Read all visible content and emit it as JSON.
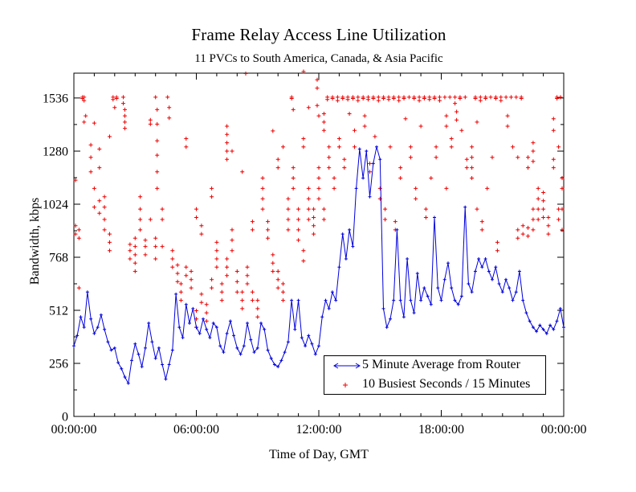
{
  "page": {
    "title": "Frame Relay Access Line Utilization",
    "subtitle": "11 PVCs to South America, Canada, & Asia Pacific"
  },
  "legend": {
    "entries": [
      {
        "label": "5 Minute Average from Router",
        "marker": "blue-errorbar-line"
      },
      {
        "label": "10 Busiest Seconds / 15 Minutes",
        "marker": "red-plus"
      }
    ]
  },
  "colors": {
    "line_series": "#0000dd",
    "scatter_series": "#ee0000",
    "axis": "#000000",
    "background": "#ffffff"
  },
  "chart_data": {
    "type": "line",
    "title": "Frame Relay Access Line Utilization",
    "subtitle": "11 PVCs to South America, Canada, & Asia Pacific",
    "xlabel": "Time of Day, GMT",
    "ylabel": "Bandwidth, kbps",
    "xlim_hours": [
      0,
      24
    ],
    "ylim": [
      0,
      1656
    ],
    "grid": false,
    "legend_position": "inside-lower-right",
    "x_ticks": [
      {
        "t": 0,
        "label": "00:00:00"
      },
      {
        "t": 6,
        "label": "06:00:00"
      },
      {
        "t": 12,
        "label": "12:00:00"
      },
      {
        "t": 18,
        "label": "18:00:00"
      },
      {
        "t": 24,
        "label": "00:00:00"
      }
    ],
    "x_minor_step_hours": 1,
    "y_ticks": [
      {
        "v": 0,
        "label": "0"
      },
      {
        "v": 256,
        "label": "256"
      },
      {
        "v": 512,
        "label": "512"
      },
      {
        "v": 768,
        "label": "768"
      },
      {
        "v": 1024,
        "label": "1024"
      },
      {
        "v": 1280,
        "label": "1280"
      },
      {
        "v": 1536,
        "label": "1536"
      }
    ],
    "y_minor_step": 128,
    "series": [
      {
        "name": "5 Minute Average from Router",
        "type": "line",
        "color": "#0000dd",
        "marker": "plus",
        "start_hour": 0,
        "sample_interval_minutes": 10,
        "values": [
          340,
          390,
          480,
          430,
          600,
          470,
          400,
          430,
          490,
          420,
          360,
          320,
          330,
          260,
          230,
          190,
          160,
          270,
          350,
          300,
          240,
          330,
          450,
          360,
          280,
          330,
          250,
          180,
          250,
          320,
          590,
          430,
          380,
          540,
          450,
          520,
          430,
          400,
          470,
          420,
          380,
          450,
          430,
          340,
          310,
          400,
          460,
          390,
          330,
          300,
          340,
          450,
          370,
          310,
          330,
          450,
          420,
          320,
          280,
          250,
          240,
          270,
          310,
          360,
          560,
          420,
          560,
          380,
          340,
          390,
          350,
          300,
          340,
          480,
          560,
          520,
          600,
          560,
          720,
          880,
          760,
          900,
          820,
          1100,
          1290,
          1150,
          1280,
          1060,
          1220,
          1300,
          1240,
          520,
          430,
          470,
          560,
          900,
          560,
          480,
          760,
          560,
          500,
          690,
          560,
          620,
          580,
          540,
          960,
          620,
          560,
          660,
          740,
          620,
          560,
          540,
          580,
          1010,
          640,
          600,
          700,
          760,
          720,
          760,
          700,
          660,
          720,
          640,
          600,
          660,
          620,
          560,
          600,
          700,
          560,
          500,
          460,
          430,
          410,
          440,
          420,
          400,
          440,
          420,
          460,
          520,
          430
        ]
      },
      {
        "name": "10 Busiest Seconds / 15 Minutes",
        "type": "scatter",
        "color": "#ee0000",
        "marker": "plus",
        "columns": [
          [
            0.08,
            [
              880,
              920,
              1140
            ]
          ],
          [
            0.25,
            [
              620,
              860,
              900
            ]
          ],
          [
            0.5,
            [
              1420,
              1536,
              1530
            ]
          ],
          [
            0.58,
            [
              1536,
              1536,
              1520,
              1450
            ]
          ],
          [
            0.83,
            [
              1180,
              1250,
              1310
            ]
          ],
          [
            1.0,
            [
              1010,
              1100,
              1415
            ]
          ],
          [
            1.25,
            [
              980,
              1040,
              1200,
              1290
            ]
          ],
          [
            1.5,
            [
              900,
              950,
              1010,
              1060
            ]
          ],
          [
            1.75,
            [
              800,
              840,
              880,
              1350
            ]
          ],
          [
            2.0,
            [
              1536,
              1536,
              1525,
              1490
            ]
          ],
          [
            2.17,
            [
              1536,
              1530
            ]
          ],
          [
            2.5,
            [
              1390,
              1420,
              1450,
              1480,
              1510,
              1536
            ]
          ],
          [
            2.75,
            [
              760,
              800,
              830
            ]
          ],
          [
            3.0,
            [
              700,
              740,
              780,
              820,
              860
            ]
          ],
          [
            3.25,
            [
              900,
              950,
              1000,
              1060
            ]
          ],
          [
            3.5,
            [
              780,
              820,
              850
            ]
          ],
          [
            3.75,
            [
              950,
              1410,
              1430
            ]
          ],
          [
            4.0,
            [
              760,
              820,
              860
            ]
          ],
          [
            4.08,
            [
              1100,
              1180,
              1260,
              1330,
              1410,
              1480,
              1536
            ]
          ],
          [
            4.33,
            [
              820,
              950,
              1000
            ]
          ],
          [
            4.67,
            [
              1440,
              1490,
              1536
            ]
          ],
          [
            4.83,
            [
              720,
              760,
              800
            ]
          ],
          [
            5.08,
            [
              650,
              690,
              730
            ]
          ],
          [
            5.25,
            [
              560,
              600,
              640
            ]
          ],
          [
            5.5,
            [
              680,
              720,
              1300,
              1340
            ]
          ],
          [
            5.75,
            [
              620,
              660,
              700
            ]
          ],
          [
            6.0,
            [
              430,
              470,
              510,
              960,
              1000
            ]
          ],
          [
            6.25,
            [
              550,
              590,
              880,
              920
            ]
          ],
          [
            6.5,
            [
              460,
              500,
              540
            ]
          ],
          [
            6.75,
            [
              620,
              660,
              1060,
              1100
            ]
          ],
          [
            7.0,
            [
              720,
              760,
              800,
              840
            ]
          ],
          [
            7.25,
            [
              560,
              600,
              640
            ]
          ],
          [
            7.5,
            [
              680,
              720,
              760,
              1240,
              1280,
              1320,
              1360,
              1400
            ]
          ],
          [
            7.75,
            [
              800,
              850,
              900,
              1280
            ]
          ],
          [
            8.0,
            [
              600,
              650,
              700
            ]
          ],
          [
            8.25,
            [
              520,
              560,
              600,
              1180
            ]
          ],
          [
            8.5,
            [
              640,
              680,
              720,
              1650
            ]
          ],
          [
            8.75,
            [
              560,
              600,
              900,
              940
            ]
          ],
          [
            9.0,
            [
              480,
              520,
              560
            ]
          ],
          [
            9.25,
            [
              1000,
              1050,
              1100,
              1150
            ]
          ],
          [
            9.5,
            [
              860,
              900,
              940
            ]
          ],
          [
            9.75,
            [
              700,
              740,
              780,
              1377
            ]
          ],
          [
            10.0,
            [
              620,
              660,
              700,
              1200,
              1240
            ]
          ],
          [
            10.25,
            [
              560,
              600,
              640,
              1300
            ]
          ],
          [
            10.5,
            [
              900,
              950,
              1000,
              1050
            ]
          ],
          [
            10.75,
            [
              1100,
              1150,
              1200,
              1536,
              1530,
              1480
            ]
          ],
          [
            11.0,
            [
              850,
              900,
              950,
              1000
            ]
          ],
          [
            11.25,
            [
              750,
              800,
              1300,
              1340
            ]
          ],
          [
            11.33,
            [
              1660
            ]
          ],
          [
            11.5,
            [
              950,
              1000,
              1050,
              1100,
              1490
            ]
          ],
          [
            11.75,
            [
              880,
              920,
              960,
              1000
            ]
          ],
          [
            12.0,
            [
              1050,
              1100,
              1150,
              1200,
              1450,
              1500,
              1580,
              1620
            ]
          ],
          [
            12.25,
            [
              950,
              1000,
              1380,
              1420,
              1460
            ]
          ],
          [
            12.5,
            [
              1200,
              1250,
              1300,
              1536,
              1536,
              1525
            ]
          ],
          [
            12.75,
            [
              1536,
              1536,
              1530,
              1100,
              1150
            ]
          ],
          [
            13.0,
            [
              1536,
              1536,
              1520,
              1300,
              1340
            ]
          ],
          [
            13.25,
            [
              1536,
              1530,
              1200,
              1240
            ]
          ],
          [
            13.5,
            [
              1536,
              1536,
              1525,
              1460
            ]
          ],
          [
            13.75,
            [
              1536,
              1530,
              1380,
              1300
            ]
          ],
          [
            14.0,
            [
              1536,
              1536,
              1536,
              1520
            ]
          ],
          [
            14.25,
            [
              1536,
              1530,
              1450,
              1400
            ]
          ],
          [
            14.5,
            [
              1536,
              1536,
              1525,
              1180,
              1220
            ]
          ],
          [
            14.75,
            [
              1536,
              1530,
              1350
            ]
          ],
          [
            15.0,
            [
              1536,
              1536,
              1520,
              1050,
              1100
            ]
          ],
          [
            15.25,
            [
              1536,
              1530,
              950,
              1000
            ]
          ],
          [
            15.5,
            [
              1536,
              1536,
              1525,
              1300
            ]
          ],
          [
            15.75,
            [
              1536,
              1530,
              900,
              940
            ]
          ],
          [
            16.0,
            [
              1536,
              1536,
              1520,
              1150,
              1200
            ]
          ],
          [
            16.25,
            [
              1536,
              1530,
              1436
            ]
          ],
          [
            16.5,
            [
              1536,
              1536,
              1250,
              1300
            ]
          ],
          [
            16.75,
            [
              1536,
              1530,
              1050,
              1100
            ]
          ],
          [
            17.0,
            [
              1536,
              1536,
              1520,
              1400
            ]
          ],
          [
            17.25,
            [
              1536,
              1530,
              960,
              1000
            ]
          ],
          [
            17.5,
            [
              1536,
              1536,
              1525,
              1150
            ]
          ],
          [
            17.75,
            [
              1536,
              1530,
              1250,
              1300
            ]
          ],
          [
            18.0,
            [
              1536,
              1536,
              1520
            ]
          ],
          [
            18.25,
            [
              1536,
              1450,
              1400,
              1100
            ]
          ],
          [
            18.5,
            [
              1536,
              1536,
              1300,
              1340
            ]
          ],
          [
            18.75,
            [
              1430,
              1470,
              1510,
              1536
            ]
          ],
          [
            19.0,
            [
              1536,
              1530,
              1380
            ]
          ],
          [
            19.25,
            [
              1536,
              1536,
              1200,
              1240
            ]
          ],
          [
            19.5,
            [
              1150,
              1200,
              1250,
              1300
            ]
          ],
          [
            19.75,
            [
              1536,
              1530,
              1420,
              1000
            ]
          ],
          [
            20.0,
            [
              1536,
              1536,
              1520,
              900,
              940
            ]
          ],
          [
            20.25,
            [
              1536,
              1530,
              1100
            ]
          ],
          [
            20.5,
            [
              1536,
              1536,
              1250
            ]
          ],
          [
            20.75,
            [
              1536,
              1530,
              800,
              840
            ]
          ],
          [
            21.0,
            [
              1536,
              1536,
              1520
            ]
          ],
          [
            21.25,
            [
              1536,
              1450,
              1400
            ]
          ],
          [
            21.5,
            [
              1536,
              1536,
              1300
            ]
          ],
          [
            21.75,
            [
              1536,
              1250,
              860,
              900
            ]
          ],
          [
            22.0,
            [
              1536,
              1530,
              880,
              920
            ]
          ],
          [
            22.25,
            [
              1200,
              1250,
              870,
              910
            ]
          ],
          [
            22.5,
            [
              900,
              950,
              1000,
              1230,
              1280,
              1320
            ]
          ],
          [
            22.75,
            [
              950,
              1000,
              1050,
              1100
            ]
          ],
          [
            23.0,
            [
              960,
              1000,
              1040,
              1080
            ]
          ],
          [
            23.25,
            [
              880,
              920,
              960
            ]
          ],
          [
            23.5,
            [
              1436,
              1380,
              1200,
              1240
            ]
          ],
          [
            23.75,
            [
              1536,
              1530,
              1300,
              950,
              1000
            ]
          ],
          [
            23.92,
            [
              1536,
              1536,
              1150,
              1100,
              1000,
              900
            ]
          ]
        ]
      }
    ]
  }
}
